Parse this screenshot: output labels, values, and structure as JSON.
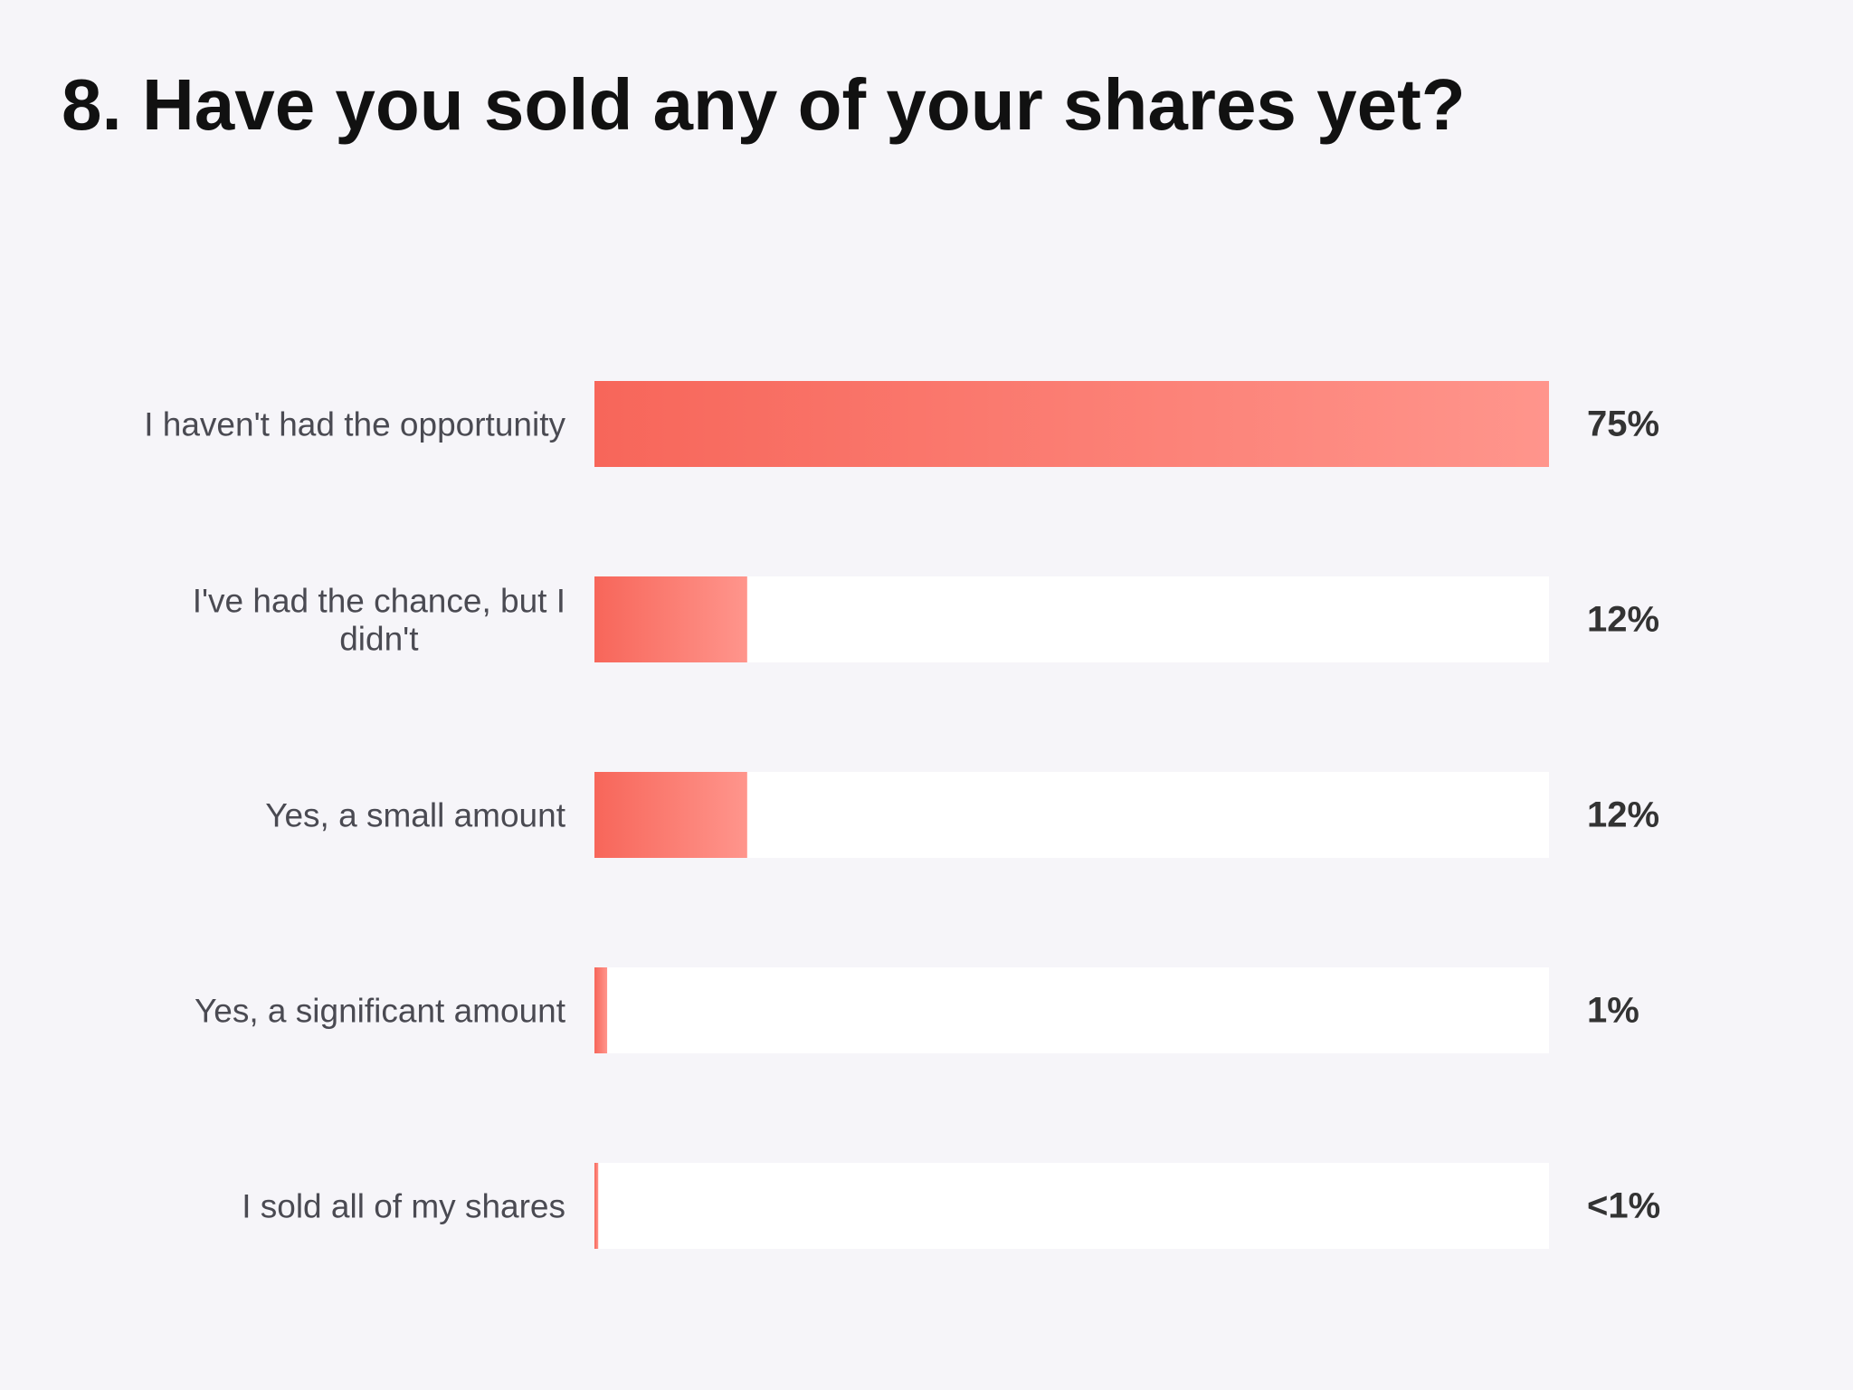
{
  "chart_data": {
    "type": "bar",
    "orientation": "horizontal",
    "title": "8. Have you sold any of your shares yet?",
    "categories": [
      [
        "I haven't had the opportunity"
      ],
      [
        "I've had the chance, but I",
        "didn't"
      ],
      [
        "Yes, a small amount"
      ],
      [
        "Yes, a significant amount"
      ],
      [
        "I sold all of my shares"
      ]
    ],
    "values": [
      75,
      12,
      12,
      1,
      0.3
    ],
    "value_labels": [
      "75%",
      "12%",
      "12%",
      "1%",
      "<1%"
    ],
    "xlim": [
      0,
      75
    ],
    "grid": false,
    "legend": "none",
    "colors": {
      "bar_start": "#f7665a",
      "bar_end": "#ff958c",
      "track": "#ffffff",
      "background": "#f6f5f9"
    }
  }
}
